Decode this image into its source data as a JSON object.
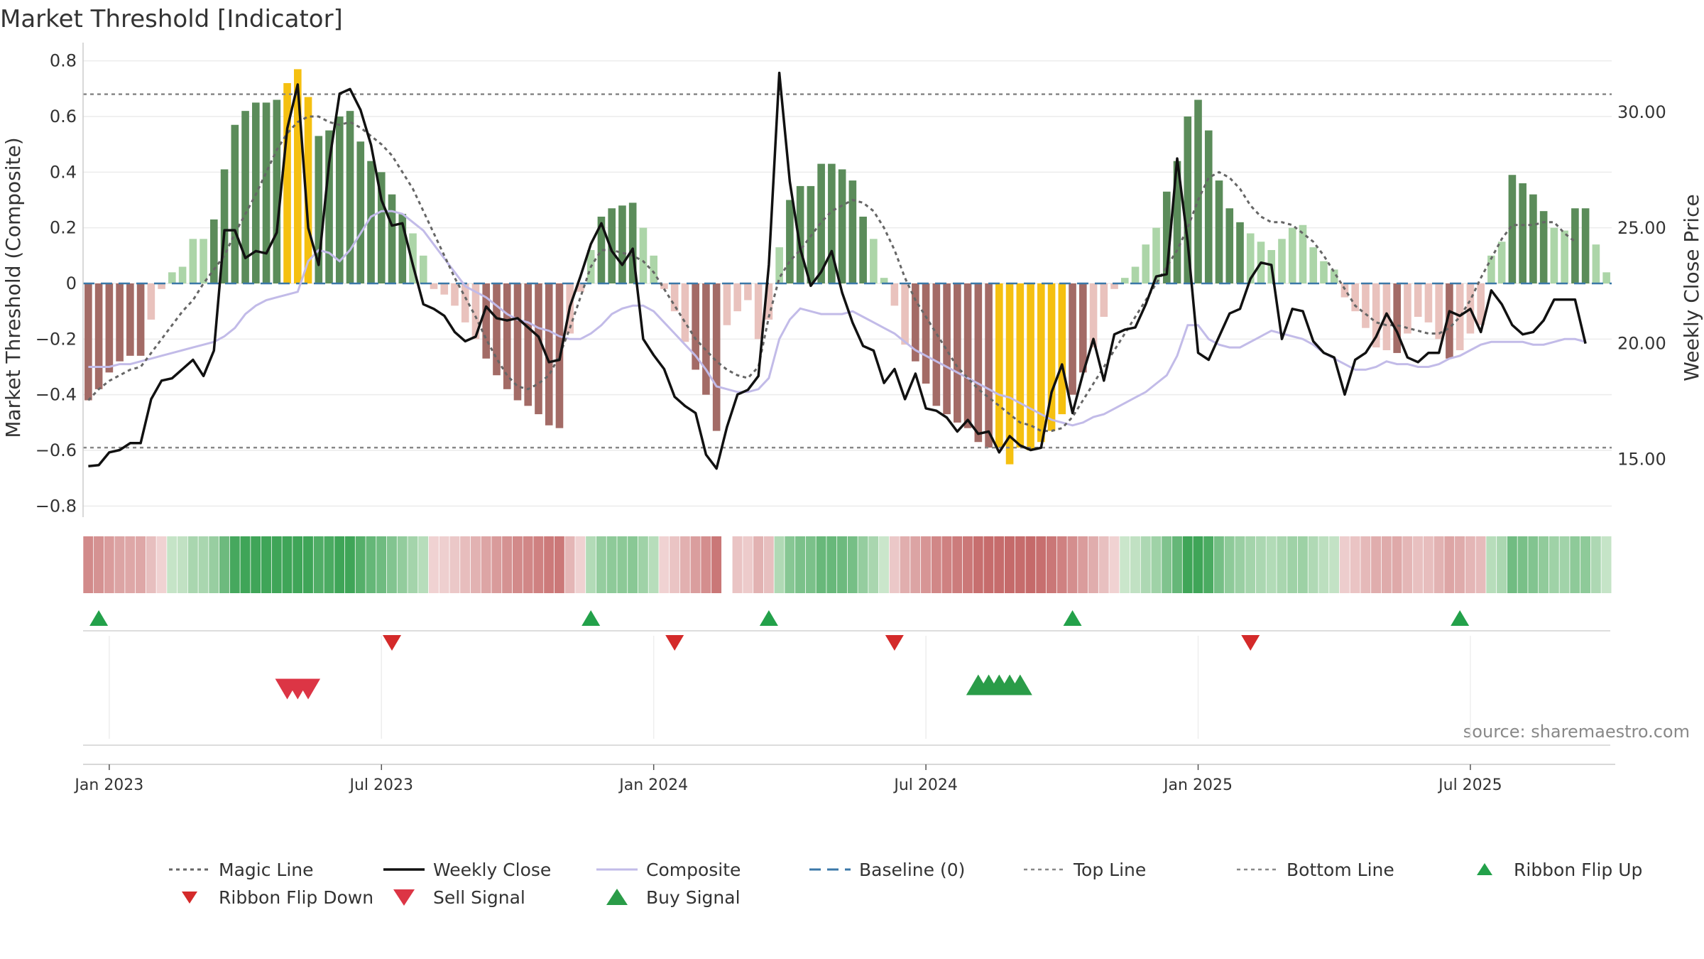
{
  "chart_data": {
    "type": "bar",
    "title": "Market Threshold [Indicator]",
    "ylabel_left": "Market Threshold (Composite)",
    "ylabel_right": "Weekly Close Price",
    "watermark": "source: sharemaestro.com",
    "ylim_left": [
      -0.84,
      0.84
    ],
    "ylim_right": [
      12.5,
      32.7
    ],
    "yticks_left": [
      {
        "v": 0.8,
        "label": "0.8"
      },
      {
        "v": 0.6,
        "label": "0.6"
      },
      {
        "v": 0.4,
        "label": "0.4"
      },
      {
        "v": 0.2,
        "label": "0.2"
      },
      {
        "v": 0,
        "label": "0"
      },
      {
        "v": -0.2,
        "label": "−0.2"
      },
      {
        "v": -0.4,
        "label": "−0.4"
      },
      {
        "v": -0.6,
        "label": "−0.6"
      },
      {
        "v": -0.8,
        "label": "−0.8"
      }
    ],
    "yticks_right": [
      {
        "v": 30,
        "label": "30.00"
      },
      {
        "v": 25,
        "label": "25.00"
      },
      {
        "v": 20,
        "label": "20.00"
      },
      {
        "v": 15,
        "label": "15.00"
      }
    ],
    "xticks": [
      {
        "i": 2,
        "label": "Jan 2023"
      },
      {
        "i": 28,
        "label": "Jul 2023"
      },
      {
        "i": 54,
        "label": "Jan 2024"
      },
      {
        "i": 80,
        "label": "Jul 2024"
      },
      {
        "i": 106,
        "label": "Jan 2025"
      },
      {
        "i": 132,
        "label": "Jul 2025"
      }
    ],
    "top_line": 0.68,
    "bottom_line": -0.59,
    "baseline": 0,
    "histogram": [
      -0.42,
      -0.38,
      -0.32,
      -0.28,
      -0.26,
      -0.26,
      -0.13,
      -0.02,
      0.04,
      0.06,
      0.16,
      0.16,
      0.23,
      0.41,
      0.57,
      0.62,
      0.65,
      0.65,
      0.66,
      0.72,
      0.77,
      0.67,
      0.53,
      0.55,
      0.6,
      0.62,
      0.51,
      0.44,
      0.4,
      0.32,
      0.25,
      0.18,
      0.1,
      -0.02,
      -0.04,
      -0.08,
      -0.14,
      -0.2,
      -0.27,
      -0.33,
      -0.38,
      -0.42,
      -0.44,
      -0.47,
      -0.51,
      -0.52,
      -0.18,
      -0.03,
      0.12,
      0.24,
      0.27,
      0.28,
      0.29,
      0.2,
      0.1,
      -0.02,
      -0.1,
      -0.21,
      -0.31,
      -0.4,
      -0.53,
      -0.15,
      -0.1,
      -0.06,
      -0.2,
      -0.13,
      0.13,
      0.3,
      0.35,
      0.35,
      0.43,
      0.43,
      0.41,
      0.37,
      0.24,
      0.16,
      0.02,
      -0.08,
      -0.22,
      -0.28,
      -0.36,
      -0.44,
      -0.47,
      -0.5,
      -0.52,
      -0.57,
      -0.59,
      -0.59,
      -0.65,
      -0.59,
      -0.6,
      -0.57,
      -0.53,
      -0.47,
      -0.4,
      -0.32,
      -0.23,
      -0.12,
      -0.02,
      0.02,
      0.06,
      0.14,
      0.2,
      0.33,
      0.44,
      0.6,
      0.66,
      0.55,
      0.37,
      0.27,
      0.22,
      0.18,
      0.15,
      0.12,
      0.16,
      0.2,
      0.21,
      0.13,
      0.08,
      0.05,
      -0.05,
      -0.1,
      -0.16,
      -0.23,
      -0.24,
      -0.25,
      -0.18,
      -0.12,
      -0.14,
      -0.2,
      -0.27,
      -0.24,
      -0.18,
      -0.15,
      0.1,
      0.15,
      0.39,
      0.36,
      0.32,
      0.26,
      0.2,
      0.19,
      0.27,
      0.27,
      0.14,
      0.04
    ],
    "histogram_gold_indices": [
      19,
      20,
      21,
      87,
      88,
      89,
      90,
      91,
      92,
      93
    ],
    "ribbon_gap_indices": [
      61
    ],
    "weekly_close": [
      14.7,
      14.75,
      15.3,
      15.4,
      15.7,
      15.7,
      17.6,
      18.4,
      18.5,
      18.9,
      19.3,
      18.6,
      19.7,
      24.9,
      24.9,
      23.7,
      24.0,
      23.9,
      24.8,
      29.3,
      31.2,
      25.0,
      23.4,
      27.8,
      30.8,
      31.0,
      30.1,
      28.6,
      26.2,
      25.1,
      25.2,
      23.4,
      21.7,
      21.5,
      21.2,
      20.5,
      20.1,
      20.3,
      21.6,
      21.1,
      21.0,
      21.1,
      20.7,
      20.3,
      19.2,
      19.3,
      21.6,
      22.9,
      24.3,
      25.2,
      24.0,
      23.4,
      24.1,
      20.2,
      19.5,
      18.9,
      17.7,
      17.3,
      17.0,
      15.2,
      14.6,
      16.4,
      17.8,
      18.0,
      18.6,
      23.4,
      31.7,
      27.0,
      24.1,
      22.5,
      23.1,
      24.0,
      22.2,
      20.9,
      19.9,
      19.7,
      18.3,
      18.9,
      17.6,
      18.7,
      17.2,
      17.1,
      16.8,
      16.2,
      16.7,
      16.1,
      16.2,
      15.3,
      16.0,
      15.6,
      15.4,
      15.5,
      17.9,
      19.1,
      17.0,
      18.7,
      20.2,
      18.4,
      20.4,
      20.6,
      20.7,
      21.7,
      22.9,
      23.0,
      28.0,
      24.4,
      19.6,
      19.3,
      20.3,
      21.3,
      21.5,
      22.8,
      23.5,
      23.4,
      20.2,
      21.5,
      21.4,
      20.1,
      19.6,
      19.4,
      17.8,
      19.3,
      19.6,
      20.3,
      21.3,
      20.5,
      19.4,
      19.2,
      19.6,
      19.6,
      21.4,
      21.2,
      21.5,
      20.5,
      22.3,
      21.7,
      20.8,
      20.4,
      20.5,
      21.0,
      21.9,
      21.9,
      21.9,
      20.0
    ],
    "composite": [
      -0.3,
      -0.3,
      -0.3,
      -0.29,
      -0.29,
      -0.28,
      -0.27,
      -0.26,
      -0.25,
      -0.24,
      -0.23,
      -0.22,
      -0.21,
      -0.19,
      -0.16,
      -0.11,
      -0.08,
      -0.06,
      -0.05,
      -0.04,
      -0.03,
      0.08,
      0.12,
      0.11,
      0.08,
      0.12,
      0.18,
      0.24,
      0.26,
      0.26,
      0.25,
      0.22,
      0.19,
      0.14,
      0.09,
      0.04,
      -0.01,
      -0.03,
      -0.05,
      -0.08,
      -0.11,
      -0.13,
      -0.14,
      -0.16,
      -0.17,
      -0.19,
      -0.2,
      -0.2,
      -0.18,
      -0.15,
      -0.11,
      -0.09,
      -0.08,
      -0.08,
      -0.1,
      -0.14,
      -0.18,
      -0.22,
      -0.26,
      -0.31,
      -0.37,
      -0.38,
      -0.39,
      -0.39,
      -0.38,
      -0.34,
      -0.2,
      -0.13,
      -0.09,
      -0.1,
      -0.11,
      -0.11,
      -0.11,
      -0.1,
      -0.12,
      -0.14,
      -0.16,
      -0.18,
      -0.21,
      -0.24,
      -0.26,
      -0.28,
      -0.3,
      -0.32,
      -0.34,
      -0.36,
      -0.38,
      -0.4,
      -0.41,
      -0.43,
      -0.45,
      -0.47,
      -0.49,
      -0.5,
      -0.51,
      -0.5,
      -0.48,
      -0.47,
      -0.45,
      -0.43,
      -0.41,
      -0.39,
      -0.36,
      -0.33,
      -0.26,
      -0.15,
      -0.15,
      -0.2,
      -0.22,
      -0.23,
      -0.23,
      -0.21,
      -0.19,
      -0.17,
      -0.18,
      -0.19,
      -0.2,
      -0.22,
      -0.25,
      -0.27,
      -0.29,
      -0.31,
      -0.31,
      -0.3,
      -0.28,
      -0.29,
      -0.29,
      -0.3,
      -0.3,
      -0.29,
      -0.27,
      -0.26,
      -0.24,
      -0.22,
      -0.21,
      -0.21,
      -0.21,
      -0.21,
      -0.22,
      -0.22,
      -0.21,
      -0.2,
      -0.2,
      -0.21
    ],
    "magic_line": [
      -0.42,
      -0.38,
      -0.35,
      -0.33,
      -0.31,
      -0.3,
      -0.25,
      -0.2,
      -0.15,
      -0.1,
      -0.06,
      0.0,
      0.05,
      0.1,
      0.18,
      0.25,
      0.32,
      0.4,
      0.48,
      0.54,
      0.58,
      0.6,
      0.6,
      0.58,
      0.57,
      0.58,
      0.56,
      0.53,
      0.5,
      0.46,
      0.4,
      0.34,
      0.26,
      0.18,
      0.1,
      0.02,
      -0.05,
      -0.12,
      -0.2,
      -0.27,
      -0.33,
      -0.37,
      -0.38,
      -0.36,
      -0.33,
      -0.26,
      -0.16,
      -0.05,
      0.06,
      0.12,
      0.12,
      0.11,
      0.1,
      0.08,
      0.04,
      -0.02,
      -0.08,
      -0.14,
      -0.2,
      -0.24,
      -0.28,
      -0.31,
      -0.33,
      -0.34,
      -0.3,
      -0.12,
      0.02,
      0.08,
      0.12,
      0.17,
      0.22,
      0.26,
      0.28,
      0.3,
      0.29,
      0.26,
      0.2,
      0.12,
      0.02,
      -0.06,
      -0.12,
      -0.18,
      -0.24,
      -0.3,
      -0.34,
      -0.38,
      -0.41,
      -0.44,
      -0.47,
      -0.5,
      -0.51,
      -0.53,
      -0.53,
      -0.52,
      -0.48,
      -0.42,
      -0.36,
      -0.3,
      -0.24,
      -0.18,
      -0.12,
      -0.06,
      0.0,
      0.06,
      0.12,
      0.2,
      0.3,
      0.38,
      0.4,
      0.38,
      0.34,
      0.28,
      0.24,
      0.22,
      0.22,
      0.21,
      0.18,
      0.15,
      0.1,
      0.04,
      -0.02,
      -0.08,
      -0.11,
      -0.14,
      -0.15,
      -0.15,
      -0.16,
      -0.17,
      -0.18,
      -0.18,
      -0.16,
      -0.12,
      -0.06,
      0.02,
      0.09,
      0.16,
      0.21,
      0.21,
      0.21,
      0.22,
      0.22,
      0.18,
      0.15
    ],
    "signals": [
      {
        "row": "ribbon_flip_up",
        "i": 1
      },
      {
        "row": "ribbon_flip_up",
        "i": 48
      },
      {
        "row": "ribbon_flip_up",
        "i": 65
      },
      {
        "row": "ribbon_flip_up",
        "i": 94
      },
      {
        "row": "ribbon_flip_up",
        "i": 131
      },
      {
        "row": "ribbon_flip_down",
        "i": 29
      },
      {
        "row": "ribbon_flip_down",
        "i": 56
      },
      {
        "row": "ribbon_flip_down",
        "i": 77
      },
      {
        "row": "ribbon_flip_down",
        "i": 111
      },
      {
        "row": "sell",
        "i": 19
      },
      {
        "row": "sell",
        "i": 20
      },
      {
        "row": "sell",
        "i": 21
      },
      {
        "row": "buy",
        "i": 85
      },
      {
        "row": "buy",
        "i": 86
      },
      {
        "row": "buy",
        "i": 87
      },
      {
        "row": "buy",
        "i": 88
      },
      {
        "row": "buy",
        "i": 89
      }
    ],
    "legend": [
      {
        "key": "magic",
        "label": "Magic Line"
      },
      {
        "key": "close",
        "label": "Weekly Close"
      },
      {
        "key": "composite",
        "label": "Composite"
      },
      {
        "key": "baseline",
        "label": "Baseline (0)"
      },
      {
        "key": "top",
        "label": "Top Line"
      },
      {
        "key": "bottom",
        "label": "Bottom Line"
      },
      {
        "key": "flipup",
        "label": "Ribbon Flip Up"
      },
      {
        "key": "flipdown",
        "label": "Ribbon Flip Down"
      },
      {
        "key": "sell",
        "label": "Sell Signal"
      },
      {
        "key": "buy",
        "label": "Buy Signal"
      }
    ],
    "colors": {
      "pos_strong": "#5b8c5a",
      "pos_weak": "#acd5a8",
      "neg_strong": "#a36b66",
      "neg_weak": "#e9c2bd",
      "gold": "#f5c010",
      "close": "#111111",
      "composite": "#c2bbe8",
      "magic": "#666666",
      "baseline": "#3b78a8",
      "threshold": "#888888",
      "flip_up": "#23a14a",
      "flip_down": "#d42a2a",
      "sell": "#dc3545",
      "buy": "#2a9c48"
    }
  }
}
